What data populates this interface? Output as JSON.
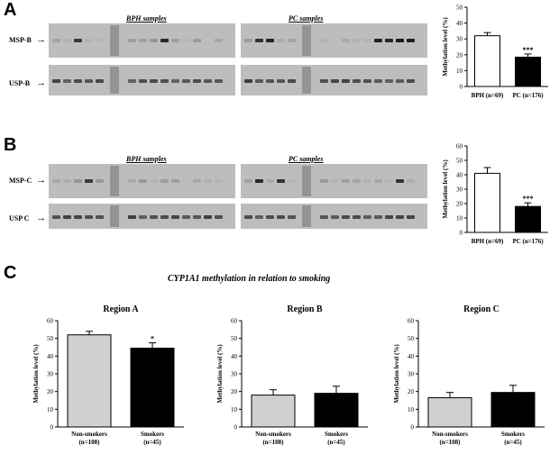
{
  "panels": {
    "A": {
      "letter": "A",
      "gel_titles": [
        "BPH samples",
        "PC samples"
      ],
      "rows": [
        "MSP-B",
        "USP-B"
      ],
      "arrow": "→"
    },
    "B": {
      "letter": "B",
      "gel_titles": [
        "BPH samples",
        "PC samples"
      ],
      "rows": [
        "MSP-C",
        "USP C"
      ],
      "arrow": "→"
    },
    "C": {
      "letter": "C",
      "title": "CYP1A1 methylation in relation to smoking"
    }
  },
  "chart_data": [
    {
      "type": "bar",
      "id": "A",
      "categories": [
        "BPH (n=69)",
        "PC (n=176)"
      ],
      "values": [
        32,
        18.5
      ],
      "errors": [
        2,
        2
      ],
      "fills": [
        "#ffffff",
        "#000000"
      ],
      "significance": [
        "",
        "***"
      ],
      "ylabel": "Methylation level (%)",
      "ylim": [
        0,
        50
      ],
      "yticks": [
        0,
        10,
        20,
        30,
        40,
        50
      ],
      "title": ""
    },
    {
      "type": "bar",
      "id": "B",
      "categories": [
        "BPH (n=69)",
        "PC (n=176)"
      ],
      "values": [
        41,
        18
      ],
      "errors": [
        4,
        2.5
      ],
      "fills": [
        "#ffffff",
        "#000000"
      ],
      "significance": [
        "",
        "***"
      ],
      "ylabel": "Methylation level (%)",
      "ylim": [
        0,
        60
      ],
      "yticks": [
        0,
        10,
        20,
        30,
        40,
        50,
        60
      ],
      "title": ""
    },
    {
      "type": "bar",
      "id": "C-A",
      "title": "Region A",
      "categories": [
        "Non-smokers (n=108)",
        "Smokers (n=45)"
      ],
      "values": [
        52,
        44.5
      ],
      "errors": [
        2,
        3
      ],
      "fills": [
        "#d0d0d0",
        "#000000"
      ],
      "significance": [
        "",
        "*"
      ],
      "ylabel": "Methylation level (%)",
      "ylim": [
        0,
        60
      ],
      "yticks": [
        0,
        10,
        20,
        30,
        40,
        50,
        60
      ]
    },
    {
      "type": "bar",
      "id": "C-B",
      "title": "Region B",
      "categories": [
        "Non-smokers (n=108)",
        "Smokers (n=45)"
      ],
      "values": [
        18,
        19
      ],
      "errors": [
        3,
        4
      ],
      "fills": [
        "#d0d0d0",
        "#000000"
      ],
      "significance": [
        "",
        ""
      ],
      "ylabel": "Methylation level (%)",
      "ylim": [
        0,
        60
      ],
      "yticks": [
        0,
        10,
        20,
        30,
        40,
        50,
        60
      ]
    },
    {
      "type": "bar",
      "id": "C-C",
      "title": "Region C",
      "categories": [
        "Non-smokers (n=108)",
        "Smokers (n=45)"
      ],
      "values": [
        16.5,
        19.5
      ],
      "errors": [
        3,
        4
      ],
      "fills": [
        "#d0d0d0",
        "#000000"
      ],
      "significance": [
        "",
        ""
      ],
      "ylabel": "Methylation level (%)",
      "ylim": [
        0,
        60
      ],
      "yticks": [
        0,
        10,
        20,
        30,
        40,
        50,
        60
      ]
    }
  ]
}
